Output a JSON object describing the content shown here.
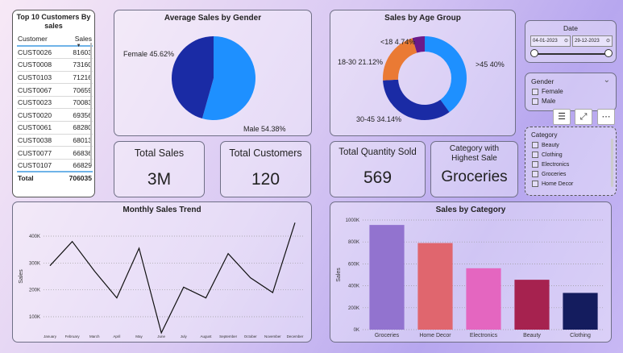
{
  "top_customers": {
    "title": "Top 10 Customers By sales",
    "col_customer": "Customer",
    "col_sales": "Sales",
    "rows": [
      {
        "customer": "CUST0026",
        "sales": "81603"
      },
      {
        "customer": "CUST0008",
        "sales": "73160"
      },
      {
        "customer": "CUST0103",
        "sales": "71216"
      },
      {
        "customer": "CUST0067",
        "sales": "70659"
      },
      {
        "customer": "CUST0023",
        "sales": "70083"
      },
      {
        "customer": "CUST0020",
        "sales": "69356"
      },
      {
        "customer": "CUST0061",
        "sales": "68280"
      },
      {
        "customer": "CUST0038",
        "sales": "68013"
      },
      {
        "customer": "CUST0077",
        "sales": "66836"
      },
      {
        "customer": "CUST0107",
        "sales": "66829"
      }
    ],
    "total_label": "Total",
    "total_value": "706035"
  },
  "gender_chart": {
    "title": "Average Sales by Gender",
    "slices": [
      {
        "label": "Female 45.62%",
        "value": 45.62,
        "color": "#1a2ba5"
      },
      {
        "label": "Male 54.38%",
        "value": 54.38,
        "color": "#1e90ff"
      }
    ]
  },
  "age_chart": {
    "title": "Sales by Age Group",
    "slices": [
      {
        "label": ">45 40%",
        "value": 40,
        "color": "#1e90ff"
      },
      {
        "label": "30-45 34.14%",
        "value": 34.14,
        "color": "#1a2ba5"
      },
      {
        "label": "18-30 21.12%",
        "value": 21.12,
        "color": "#ea7a34"
      },
      {
        "label": "<18 4.74%",
        "value": 4.74,
        "color": "#6b1a8a"
      }
    ]
  },
  "kpis": {
    "total_sales": {
      "label": "Total Sales",
      "value": "3M"
    },
    "total_customers": {
      "label": "Total Customers",
      "value": "120"
    },
    "total_quantity": {
      "label": "Total Quantity Sold",
      "value": "569"
    },
    "top_category": {
      "label": "Category with Highest Sale",
      "value": "Groceries"
    }
  },
  "date_slicer": {
    "label": "Date",
    "start": "04-01-2023",
    "end": "29-12-2023"
  },
  "gender_slicer": {
    "label": "Gender",
    "options": [
      "Female",
      "Male"
    ]
  },
  "category_slicer": {
    "label": "Category",
    "options": [
      "Beauty",
      "Clothing",
      "Electronics",
      "Groceries",
      "Home Decor"
    ]
  },
  "chart_data": [
    {
      "type": "line",
      "title": "Monthly Sales Trend",
      "ylabel": "Sales",
      "xlabel": "",
      "categories": [
        "January",
        "February",
        "March",
        "April",
        "May",
        "June",
        "July",
        "August",
        "September",
        "October",
        "November",
        "December"
      ],
      "values": [
        290000,
        380000,
        270000,
        170000,
        355000,
        40000,
        210000,
        170000,
        335000,
        245000,
        190000,
        450000
      ],
      "yticks": [
        "100K",
        "200K",
        "300K",
        "400K"
      ],
      "ylim": [
        40000,
        460000
      ]
    },
    {
      "type": "bar",
      "title": "Sales by Category",
      "ylabel": "Sales",
      "xlabel": "",
      "categories": [
        "Groceries",
        "Home Decor",
        "Electronics",
        "Beauty",
        "Clothing"
      ],
      "values": [
        955000,
        790000,
        560000,
        455000,
        335000
      ],
      "colors": [
        "#9273cf",
        "#e0666e",
        "#e466c0",
        "#a6224f",
        "#141c5e"
      ],
      "yticks": [
        "0K",
        "200K",
        "400K",
        "600K",
        "800K",
        "1000K"
      ],
      "ylim": [
        0,
        1000000
      ]
    }
  ]
}
